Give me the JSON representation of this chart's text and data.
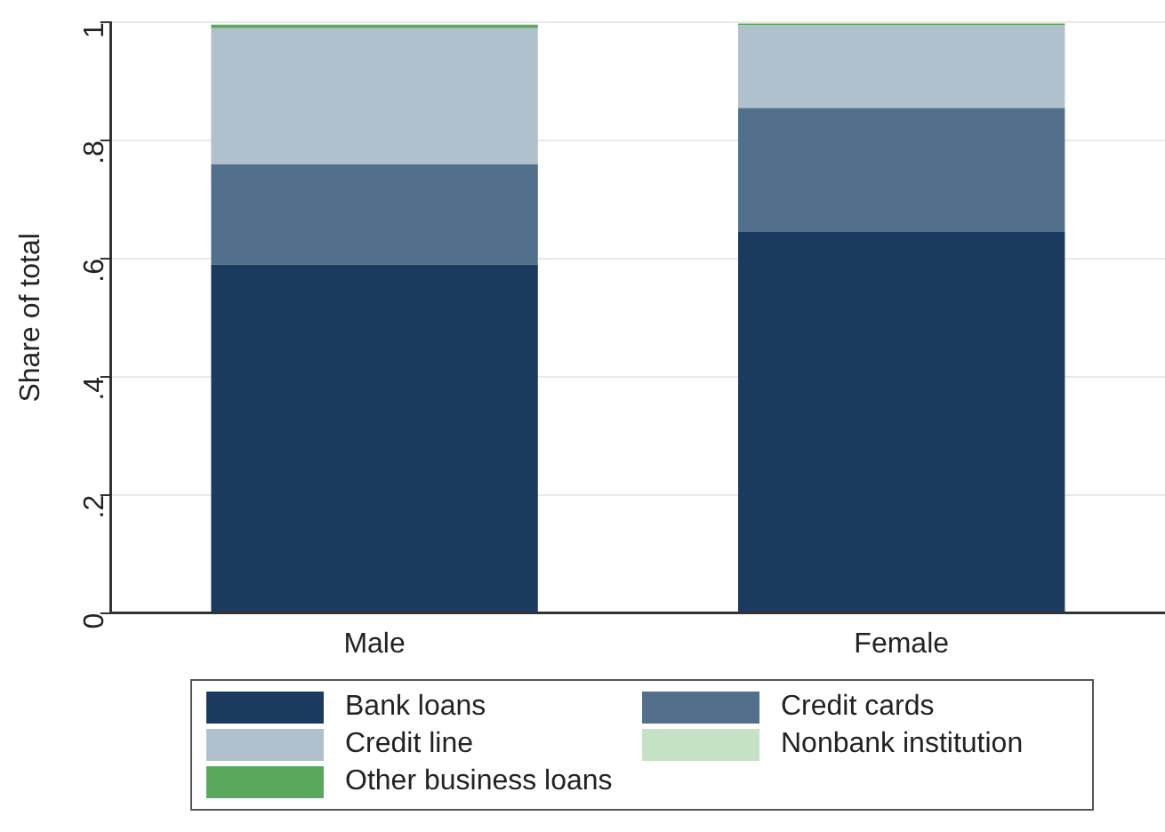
{
  "chart_data": {
    "type": "bar",
    "stacked": true,
    "ylabel": "Share of total",
    "categories": [
      "Male",
      "Female"
    ],
    "series": [
      {
        "name": "Bank loans",
        "color": "#1a3b5f",
        "values": [
          0.59,
          0.645
        ]
      },
      {
        "name": "Credit cards",
        "color": "#52708c",
        "values": [
          0.17,
          0.21
        ]
      },
      {
        "name": "Credit line",
        "color": "#b1c0cd",
        "values": [
          0.23,
          0.14
        ]
      },
      {
        "name": "Nonbank institution",
        "color": "#c5e2c6",
        "values": [
          null,
          null
        ]
      },
      {
        "name": "Other business loans",
        "color": "#5aa85c",
        "values": [
          0.006,
          0.003
        ]
      }
    ],
    "ylim": [
      0,
      1
    ],
    "yticks": [
      0,
      {
        "value": 0.2,
        "label": ".2"
      },
      {
        "value": 0.4,
        "label": ".4"
      },
      {
        "value": 0.6,
        "label": ".6"
      },
      {
        "value": 0.8,
        "label": ".8"
      },
      1
    ],
    "grid": "y",
    "legend": "bottom"
  }
}
